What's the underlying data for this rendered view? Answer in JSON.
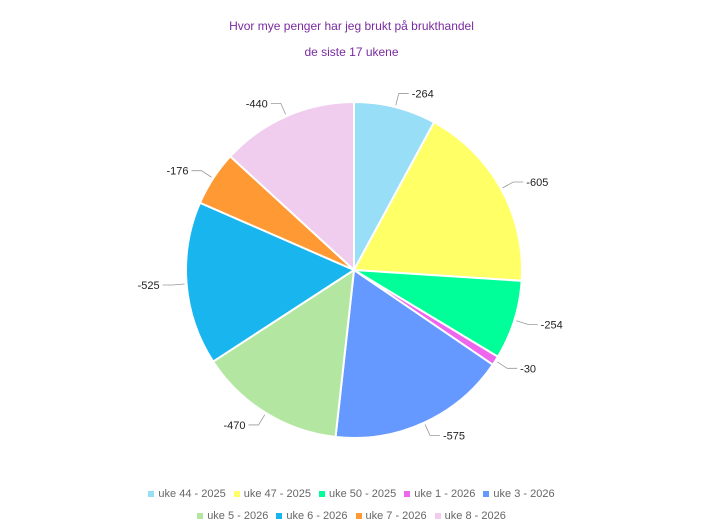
{
  "chart_data": {
    "type": "pie",
    "title": "Hvor mye penger har jeg brukt på brukthandel",
    "subtitle": "de siste 17 ukene",
    "categories": [
      "uke 44 - 2025",
      "uke 47 - 2025",
      "uke 50 - 2025",
      "uke 1 - 2026",
      "uke 3 - 2026",
      "uke 5 - 2026",
      "uke 6 - 2026",
      "uke 7 - 2026",
      "uke 8 - 2026"
    ],
    "values": [
      -264,
      -605,
      -254,
      -30,
      -575,
      -470,
      -525,
      -176,
      -440
    ],
    "colors": [
      "#99def7",
      "#ffff66",
      "#00ff99",
      "#ee66ee",
      "#6699ff",
      "#b3e6a1",
      "#19b5ee",
      "#ff9933",
      "#f0cdef"
    ],
    "legend_position": "bottom"
  }
}
